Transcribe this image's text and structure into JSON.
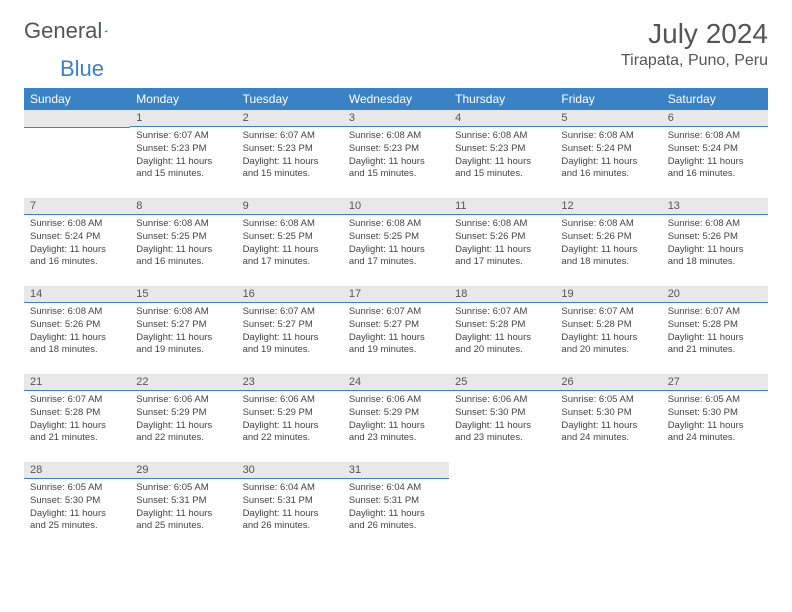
{
  "logo": {
    "word1": "General",
    "word2": "Blue"
  },
  "title": "July 2024",
  "location": "Tirapata, Puno, Peru",
  "colors": {
    "header_bg": "#3b82c4",
    "header_text": "#ffffff",
    "daynum_bg": "#e8e8e8",
    "daynum_border": "#3b82c4",
    "body_text": "#444444",
    "page_bg": "#ffffff"
  },
  "weekdays": [
    "Sunday",
    "Monday",
    "Tuesday",
    "Wednesday",
    "Thursday",
    "Friday",
    "Saturday"
  ],
  "start_offset": 1,
  "days": [
    {
      "n": 1,
      "sunrise": "6:07 AM",
      "sunset": "5:23 PM",
      "daylight": "11 hours and 15 minutes."
    },
    {
      "n": 2,
      "sunrise": "6:07 AM",
      "sunset": "5:23 PM",
      "daylight": "11 hours and 15 minutes."
    },
    {
      "n": 3,
      "sunrise": "6:08 AM",
      "sunset": "5:23 PM",
      "daylight": "11 hours and 15 minutes."
    },
    {
      "n": 4,
      "sunrise": "6:08 AM",
      "sunset": "5:23 PM",
      "daylight": "11 hours and 15 minutes."
    },
    {
      "n": 5,
      "sunrise": "6:08 AM",
      "sunset": "5:24 PM",
      "daylight": "11 hours and 16 minutes."
    },
    {
      "n": 6,
      "sunrise": "6:08 AM",
      "sunset": "5:24 PM",
      "daylight": "11 hours and 16 minutes."
    },
    {
      "n": 7,
      "sunrise": "6:08 AM",
      "sunset": "5:24 PM",
      "daylight": "11 hours and 16 minutes."
    },
    {
      "n": 8,
      "sunrise": "6:08 AM",
      "sunset": "5:25 PM",
      "daylight": "11 hours and 16 minutes."
    },
    {
      "n": 9,
      "sunrise": "6:08 AM",
      "sunset": "5:25 PM",
      "daylight": "11 hours and 17 minutes."
    },
    {
      "n": 10,
      "sunrise": "6:08 AM",
      "sunset": "5:25 PM",
      "daylight": "11 hours and 17 minutes."
    },
    {
      "n": 11,
      "sunrise": "6:08 AM",
      "sunset": "5:26 PM",
      "daylight": "11 hours and 17 minutes."
    },
    {
      "n": 12,
      "sunrise": "6:08 AM",
      "sunset": "5:26 PM",
      "daylight": "11 hours and 18 minutes."
    },
    {
      "n": 13,
      "sunrise": "6:08 AM",
      "sunset": "5:26 PM",
      "daylight": "11 hours and 18 minutes."
    },
    {
      "n": 14,
      "sunrise": "6:08 AM",
      "sunset": "5:26 PM",
      "daylight": "11 hours and 18 minutes."
    },
    {
      "n": 15,
      "sunrise": "6:08 AM",
      "sunset": "5:27 PM",
      "daylight": "11 hours and 19 minutes."
    },
    {
      "n": 16,
      "sunrise": "6:07 AM",
      "sunset": "5:27 PM",
      "daylight": "11 hours and 19 minutes."
    },
    {
      "n": 17,
      "sunrise": "6:07 AM",
      "sunset": "5:27 PM",
      "daylight": "11 hours and 19 minutes."
    },
    {
      "n": 18,
      "sunrise": "6:07 AM",
      "sunset": "5:28 PM",
      "daylight": "11 hours and 20 minutes."
    },
    {
      "n": 19,
      "sunrise": "6:07 AM",
      "sunset": "5:28 PM",
      "daylight": "11 hours and 20 minutes."
    },
    {
      "n": 20,
      "sunrise": "6:07 AM",
      "sunset": "5:28 PM",
      "daylight": "11 hours and 21 minutes."
    },
    {
      "n": 21,
      "sunrise": "6:07 AM",
      "sunset": "5:28 PM",
      "daylight": "11 hours and 21 minutes."
    },
    {
      "n": 22,
      "sunrise": "6:06 AM",
      "sunset": "5:29 PM",
      "daylight": "11 hours and 22 minutes."
    },
    {
      "n": 23,
      "sunrise": "6:06 AM",
      "sunset": "5:29 PM",
      "daylight": "11 hours and 22 minutes."
    },
    {
      "n": 24,
      "sunrise": "6:06 AM",
      "sunset": "5:29 PM",
      "daylight": "11 hours and 23 minutes."
    },
    {
      "n": 25,
      "sunrise": "6:06 AM",
      "sunset": "5:30 PM",
      "daylight": "11 hours and 23 minutes."
    },
    {
      "n": 26,
      "sunrise": "6:05 AM",
      "sunset": "5:30 PM",
      "daylight": "11 hours and 24 minutes."
    },
    {
      "n": 27,
      "sunrise": "6:05 AM",
      "sunset": "5:30 PM",
      "daylight": "11 hours and 24 minutes."
    },
    {
      "n": 28,
      "sunrise": "6:05 AM",
      "sunset": "5:30 PM",
      "daylight": "11 hours and 25 minutes."
    },
    {
      "n": 29,
      "sunrise": "6:05 AM",
      "sunset": "5:31 PM",
      "daylight": "11 hours and 25 minutes."
    },
    {
      "n": 30,
      "sunrise": "6:04 AM",
      "sunset": "5:31 PM",
      "daylight": "11 hours and 26 minutes."
    },
    {
      "n": 31,
      "sunrise": "6:04 AM",
      "sunset": "5:31 PM",
      "daylight": "11 hours and 26 minutes."
    }
  ]
}
